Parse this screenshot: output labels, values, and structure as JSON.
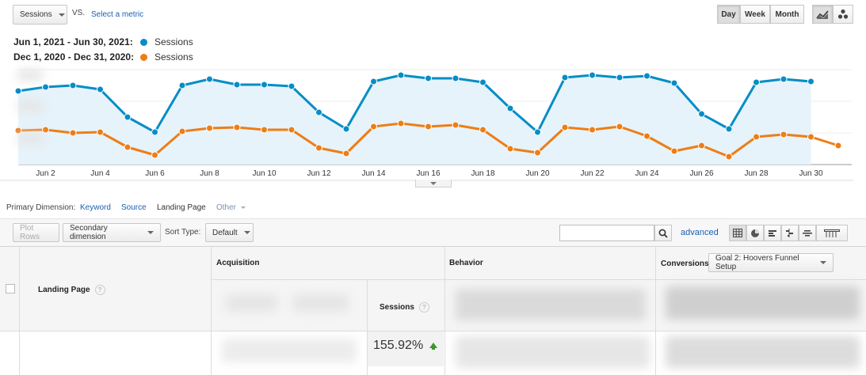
{
  "toolbar": {
    "metric_select": "Sessions",
    "vs_label": "VS.",
    "select_metric_link": "Select a metric",
    "granularity": [
      "Day",
      "Week",
      "Month"
    ],
    "active_granularity": "Day"
  },
  "legend": [
    {
      "range": "Jun 1, 2021 - Jun 30, 2021:",
      "series": "Sessions",
      "color": "#058dc7"
    },
    {
      "range": "Dec 1, 2020 - Dec 31, 2020:",
      "series": "Sessions",
      "color": "#ed7e17"
    }
  ],
  "chart_data": {
    "type": "line",
    "x_tick_labels": [
      "Jun 2",
      "Jun 4",
      "Jun 6",
      "Jun 8",
      "Jun 10",
      "Jun 12",
      "Jun 14",
      "Jun 16",
      "Jun 18",
      "Jun 20",
      "Jun 22",
      "Jun 24",
      "Jun 26",
      "Jun 28",
      "Jun 30"
    ],
    "x": [
      1,
      2,
      3,
      4,
      5,
      6,
      7,
      8,
      9,
      10,
      11,
      12,
      13,
      14,
      15,
      16,
      17,
      18,
      19,
      20,
      21,
      22,
      23,
      24,
      25,
      26,
      27,
      28,
      29,
      30,
      31
    ],
    "series": [
      {
        "name": "Sessions",
        "color": "#058dc7",
        "fill": true,
        "values": [
          93,
          98,
          100,
          95,
          60,
          41,
          100,
          108,
          101,
          101,
          99,
          66,
          45,
          105,
          113,
          109,
          109,
          104,
          71,
          41,
          110,
          113,
          110,
          112,
          103,
          64,
          45,
          104,
          108,
          105,
          null
        ]
      },
      {
        "name": "Sessions",
        "color": "#ed7e17",
        "fill": false,
        "values": [
          43,
          44,
          40,
          41,
          22,
          12,
          42,
          46,
          47,
          44,
          44,
          21,
          14,
          48,
          52,
          48,
          50,
          44,
          20,
          15,
          47,
          44,
          48,
          36,
          17,
          24,
          10,
          35,
          38,
          35,
          24
        ]
      }
    ],
    "ylim": [
      0,
      120
    ],
    "grid": true
  },
  "dimension_bar": {
    "label": "Primary Dimension:",
    "options": [
      "Keyword",
      "Source",
      "Landing Page",
      "Other"
    ],
    "active": "Landing Page"
  },
  "table_toolbar": {
    "plot_rows": "Plot Rows",
    "secondary_dimension": "Secondary dimension",
    "sort_type_label": "Sort Type:",
    "sort_type_value": "Default",
    "search_value": "",
    "advanced_link": "advanced"
  },
  "table": {
    "group_headers": {
      "acquisition": "Acquisition",
      "behavior": "Behavior",
      "conversions": "Conversions"
    },
    "goal_select": "Goal 2: Hoovers Funnel Setup",
    "col_landing_page": "Landing Page",
    "col_sessions": "Sessions",
    "sessions_change": "155.92%"
  }
}
